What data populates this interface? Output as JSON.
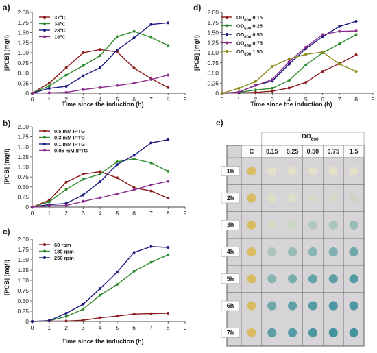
{
  "chart_data": [
    {
      "panel": "a)",
      "type": "line",
      "xlabel": "Time since the induction (h)",
      "ylabel": "[PCB] (mg/l)",
      "xlim": [
        0,
        9
      ],
      "ylim": [
        0,
        2.0
      ],
      "x_ticks": [
        "0",
        "1",
        "2",
        "3",
        "4",
        "5",
        "6",
        "7",
        "8",
        "9"
      ],
      "y_ticks": [
        "0",
        "0.25",
        "0.50",
        "0.75",
        "1.00",
        "1.25",
        "1.50",
        "1.75",
        "2.00"
      ],
      "legend_position": "top-left",
      "x": [
        0,
        1,
        2,
        3,
        4,
        5,
        6,
        7,
        8
      ],
      "series": [
        {
          "name": "37°C",
          "color": "#8b1a1a",
          "values": [
            0,
            0.25,
            0.63,
            1.0,
            1.08,
            1.02,
            0.62,
            0.36,
            0.14
          ]
        },
        {
          "name": "34°C",
          "color": "#2e8b2e",
          "values": [
            0,
            0.18,
            0.45,
            0.68,
            0.93,
            1.4,
            1.53,
            1.38,
            1.18
          ]
        },
        {
          "name": "28°C",
          "color": "#1a1a80",
          "values": [
            0,
            0.12,
            0.17,
            0.43,
            0.63,
            1.07,
            1.37,
            1.7,
            1.74
          ]
        },
        {
          "name": "18°C",
          "color": "#8b2d8b",
          "values": [
            0,
            0.01,
            0.02,
            0.09,
            0.14,
            0.19,
            0.25,
            0.34,
            0.45
          ]
        }
      ]
    },
    {
      "panel": "b)",
      "type": "line",
      "xlabel": "",
      "ylabel": "[PCB] (mg/l)",
      "xlim": [
        0,
        9
      ],
      "ylim": [
        0,
        2.0
      ],
      "x_ticks": [
        "0",
        "1",
        "2",
        "3",
        "4",
        "5",
        "6",
        "7",
        "8",
        "9"
      ],
      "y_ticks": [
        "0",
        "0.25",
        "0.50",
        "0.75",
        "1.00",
        "1.25",
        "1.50",
        "1.75",
        "2.00"
      ],
      "legend_position": "top-left",
      "x": [
        0,
        1,
        2,
        3,
        4,
        5,
        6,
        7,
        8
      ],
      "series": [
        {
          "name": "0.5 mM IPTG",
          "color": "#8b1a1a",
          "values": [
            0,
            0.17,
            0.62,
            0.82,
            0.88,
            0.73,
            0.48,
            0.4,
            0.22
          ]
        },
        {
          "name": "0.3 mM IPTG",
          "color": "#2e8b2e",
          "values": [
            0,
            0.13,
            0.44,
            0.69,
            0.82,
            1.13,
            1.2,
            1.1,
            0.89
          ]
        },
        {
          "name": "0.1 mM IPTG",
          "color": "#1a1a80",
          "values": [
            0,
            0.06,
            0.09,
            0.3,
            0.63,
            1.06,
            1.29,
            1.6,
            1.68
          ]
        },
        {
          "name": "0.05 mM IPTG",
          "color": "#8b2d8b",
          "values": [
            0,
            0.03,
            0.04,
            0.14,
            0.23,
            0.33,
            0.43,
            0.55,
            0.64
          ]
        }
      ]
    },
    {
      "panel": "c)",
      "type": "line",
      "xlabel": "Time since the induction (h)",
      "ylabel": "[PCB] (mg/l)",
      "xlim": [
        0,
        9
      ],
      "ylim": [
        0,
        2.0
      ],
      "x_ticks": [
        "0",
        "1",
        "2",
        "3",
        "4",
        "5",
        "6",
        "7",
        "8",
        "9"
      ],
      "y_ticks": [
        "0",
        "0.25",
        "0.50",
        "0.75",
        "1.00",
        "1.25",
        "1.50",
        "1.75",
        "2.00"
      ],
      "legend_position": "top-left",
      "x": [
        0,
        1,
        2,
        3,
        4,
        5,
        6,
        7,
        8
      ],
      "series": [
        {
          "name": "60 rpm",
          "color": "#8b1a1a",
          "values": [
            0,
            0.01,
            0.01,
            0.03,
            0.09,
            0.13,
            0.18,
            0.19,
            0.2
          ]
        },
        {
          "name": "180 rpm",
          "color": "#2e8b2e",
          "values": [
            0,
            0.02,
            0.12,
            0.3,
            0.64,
            0.9,
            1.22,
            1.44,
            1.62
          ]
        },
        {
          "name": "250 rpm",
          "color": "#1a1a80",
          "values": [
            0,
            0.02,
            0.2,
            0.42,
            0.8,
            1.2,
            1.68,
            1.82,
            1.8
          ]
        }
      ]
    },
    {
      "panel": "d)",
      "type": "line",
      "xlabel": "Time since the induction (h)",
      "ylabel": "[PCB] (mg/l)",
      "xlim": [
        0,
        9
      ],
      "ylim": [
        0,
        2.0
      ],
      "x_ticks": [
        "0",
        "1",
        "2",
        "3",
        "4",
        "5",
        "6",
        "7",
        "8",
        "9"
      ],
      "y_ticks": [
        "0",
        "0.25",
        "0.50",
        "0.75",
        "1.00",
        "1.25",
        "1.50",
        "1.75",
        "2.00"
      ],
      "legend_position": "top-left",
      "x": [
        0,
        1,
        2,
        3,
        4,
        5,
        6,
        7,
        8
      ],
      "series": [
        {
          "name": "OD600 0.15",
          "label_main": "OD",
          "label_sub": "600",
          "label_val": "0.15",
          "color": "#8b1a1a",
          "values": [
            0,
            0.01,
            0.02,
            0.05,
            0.13,
            0.27,
            0.54,
            0.73,
            0.95
          ]
        },
        {
          "name": "OD600 0.25",
          "label_main": "OD",
          "label_sub": "600",
          "label_val": "0.25",
          "color": "#2e8b2e",
          "values": [
            0,
            0.02,
            0.08,
            0.12,
            0.32,
            0.7,
            1.0,
            1.22,
            1.45
          ]
        },
        {
          "name": "OD600 0.50",
          "label_main": "OD",
          "label_sub": "600",
          "label_val": "0.50",
          "color": "#1a1a80",
          "values": [
            0,
            0.02,
            0.2,
            0.3,
            0.72,
            1.1,
            1.4,
            1.65,
            1.78
          ]
        },
        {
          "name": "OD600 0.75",
          "label_main": "OD",
          "label_sub": "600",
          "label_val": "0.75",
          "color": "#8b2d8b",
          "values": [
            0,
            0.03,
            0.19,
            0.34,
            0.78,
            1.14,
            1.45,
            1.53,
            1.54
          ]
        },
        {
          "name": "OD600 1.50",
          "label_main": "OD",
          "label_sub": "600",
          "label_val": "1.50",
          "color": "#8b8b1a",
          "values": [
            0,
            0.12,
            0.29,
            0.66,
            0.85,
            0.96,
            1.02,
            0.72,
            0.54
          ]
        }
      ]
    }
  ],
  "plate": {
    "panel": "e)",
    "header_main": "DO",
    "header_sub": "600",
    "columns": [
      "C",
      "0.15",
      "0.25",
      "0.50",
      "0.75",
      "1.5"
    ],
    "rows": [
      "1h",
      "2h",
      "3h",
      "4h",
      "5h",
      "6h",
      "7h"
    ],
    "colors": {
      "yellow": "#d9b85a",
      "light": "#e6e2c8",
      "teal": "#3f9aa0",
      "blue": "#2f8898",
      "plate": "#d6d4d7",
      "border": "#5f5f5f"
    },
    "well_intensity": [
      [
        0,
        0.0,
        0.0,
        0.0,
        0.0,
        0.0
      ],
      [
        0,
        0.05,
        0.05,
        0.1,
        0.1,
        0.15
      ],
      [
        0,
        0.1,
        0.15,
        0.3,
        0.35,
        0.45
      ],
      [
        0,
        0.35,
        0.45,
        0.55,
        0.6,
        0.7
      ],
      [
        0,
        0.55,
        0.65,
        0.75,
        0.8,
        0.85
      ],
      [
        0,
        0.7,
        0.8,
        0.85,
        0.9,
        0.9
      ],
      [
        0,
        0.8,
        0.85,
        0.9,
        0.95,
        0.95
      ]
    ]
  }
}
